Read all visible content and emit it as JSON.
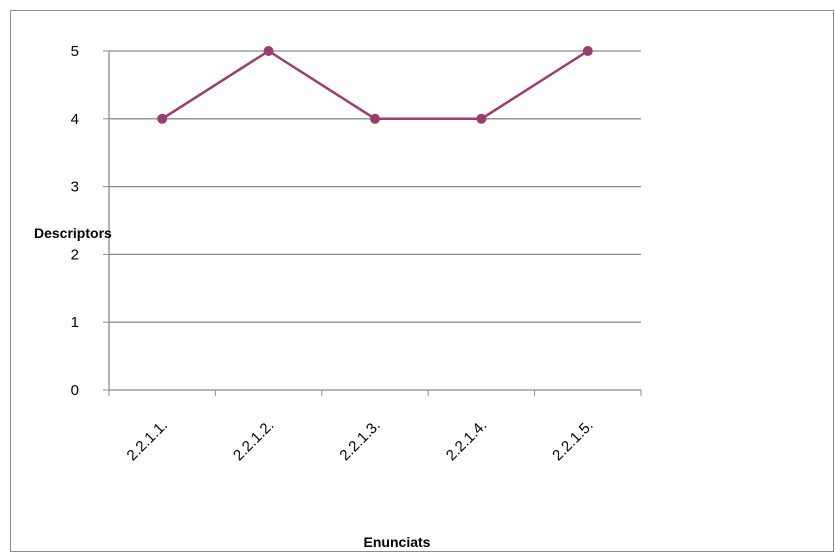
{
  "chart_data": {
    "type": "line",
    "title": "",
    "xlabel": "Enunciats",
    "ylabel": "Descriptors",
    "categories": [
      "2.2.1.1.",
      "2.2.1.2.",
      "2.2.1.3.",
      "2.2.1.4.",
      "2.2.1.5."
    ],
    "series": [
      {
        "values": [
          4,
          5,
          4,
          4,
          5
        ],
        "color": "#9b3d6e"
      }
    ],
    "ylim": [
      0,
      5
    ],
    "yticks": [
      "0",
      "1",
      "2",
      "3",
      "4",
      "5"
    ],
    "grid": true,
    "legend": "none"
  }
}
